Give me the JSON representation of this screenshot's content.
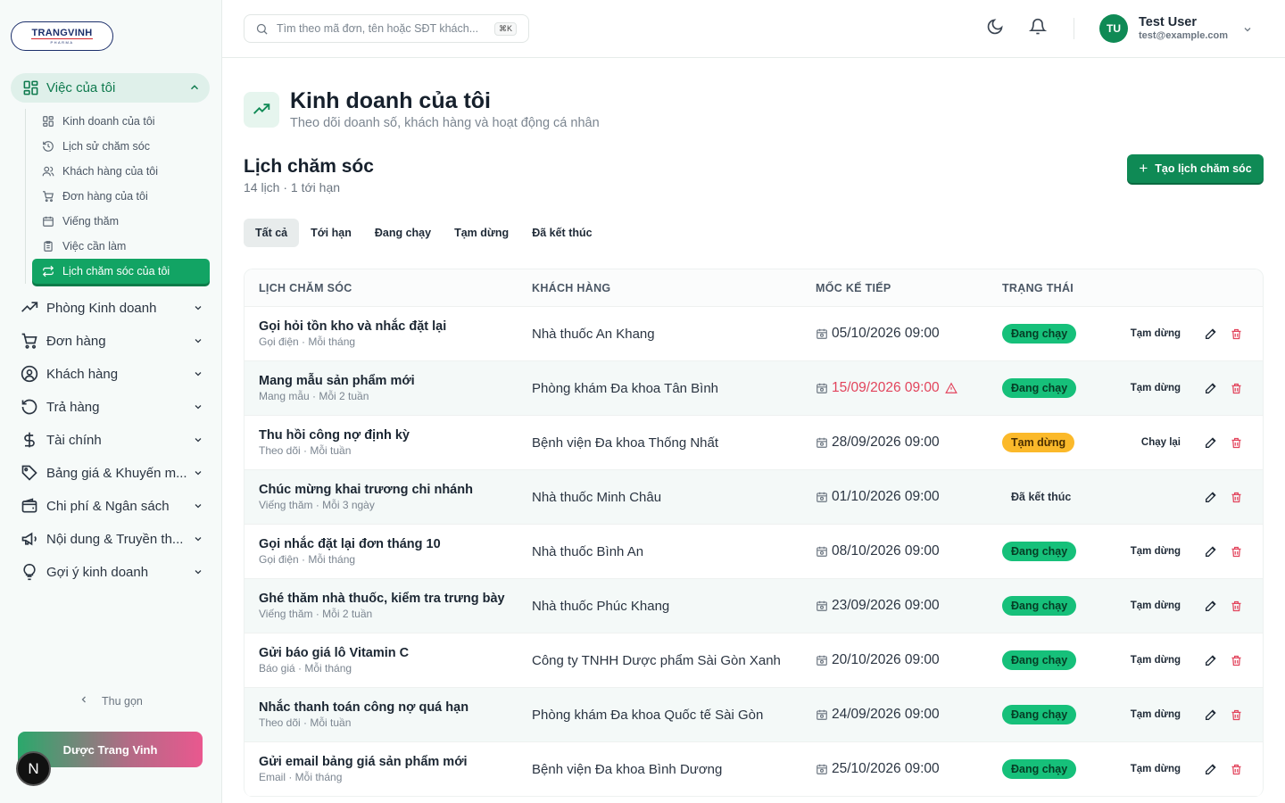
{
  "brand": {
    "logo_main": "TRANGVINH",
    "logo_sub": "PHARMA"
  },
  "sidebar": {
    "open_group": {
      "label": "Việc của tôi",
      "icon": "dashboard-icon"
    },
    "sub_items": [
      {
        "label": "Kinh doanh của tôi",
        "icon": "dashboard-icon"
      },
      {
        "label": "Lịch sử chăm sóc",
        "icon": "history-icon"
      },
      {
        "label": "Khách hàng của tôi",
        "icon": "users-icon"
      },
      {
        "label": "Đơn hàng của tôi",
        "icon": "cart-icon"
      },
      {
        "label": "Viếng thăm",
        "icon": "calendar-icon"
      },
      {
        "label": "Việc cần làm",
        "icon": "clipboard-icon"
      },
      {
        "label": "Lịch chăm sóc của tôi",
        "icon": "repeat-icon"
      }
    ],
    "groups": [
      {
        "label": "Phòng Kinh doanh",
        "icon": "trending-icon"
      },
      {
        "label": "Đơn hàng",
        "icon": "cart-icon"
      },
      {
        "label": "Khách hàng",
        "icon": "user-circle-icon"
      },
      {
        "label": "Trả hàng",
        "icon": "undo-icon"
      },
      {
        "label": "Tài chính",
        "icon": "dollar-icon"
      },
      {
        "label": "Bảng giá & Khuyến m...",
        "icon": "tag-icon"
      },
      {
        "label": "Chi phí & Ngân sách",
        "icon": "wallet-icon"
      },
      {
        "label": "Nội dung & Truyền th...",
        "icon": "megaphone-icon"
      },
      {
        "label": "Gợi ý kinh doanh",
        "icon": "lightbulb-icon"
      }
    ],
    "collapse_label": "Thu gọn",
    "brand_button": "Dược Trang Vinh",
    "n_badge": "N"
  },
  "topbar": {
    "search_placeholder": "Tìm theo mã đơn, tên hoặc SĐT khách...",
    "shortcut": "⌘K",
    "user_initials": "TU",
    "user_name": "Test User",
    "user_email": "test@example.com"
  },
  "page": {
    "title": "Kinh doanh của tôi",
    "subtitle": "Theo dõi doanh số, khách hàng và hoạt động cá nhân",
    "section_title": "Lịch chăm sóc",
    "section_sub": "14 lịch · 1 tới hạn",
    "create_button": "Tạo lịch chăm sóc",
    "tabs": [
      "Tất cả",
      "Tới hạn",
      "Đang chạy",
      "Tạm dừng",
      "Đã kết thúc"
    ]
  },
  "table": {
    "headers": [
      "LỊCH CHĂM SÓC",
      "KHÁCH HÀNG",
      "MỐC KẾ TIẾP",
      "TRẠNG THÁI"
    ],
    "rows": [
      {
        "name": "Gọi hỏi tồn kho và nhắc đặt lại",
        "meta": "Gọi điện · Mỗi tháng",
        "customer": "Nhà thuốc An Khang",
        "next": "05/10/2026 09:00",
        "status": "Đang chạy",
        "action": "Tạm dừng"
      },
      {
        "name": "Mang mẫu sản phẩm mới",
        "meta": "Mang mẫu · Mỗi 2 tuần",
        "customer": "Phòng khám Đa khoa Tân Bình",
        "next": "15/09/2026 09:00",
        "status": "Đang chạy",
        "action": "Tạm dừng"
      },
      {
        "name": "Thu hồi công nợ định kỳ",
        "meta": "Theo dõi · Mỗi tuần",
        "customer": "Bệnh viện Đa khoa Thống Nhất",
        "next": "28/09/2026 09:00",
        "status": "Tạm dừng",
        "action": "Chạy lại"
      },
      {
        "name": "Chúc mừng khai trương chi nhánh",
        "meta": "Viếng thăm · Mỗi 3 ngày",
        "customer": "Nhà thuốc Minh Châu",
        "next": "01/10/2026 09:00",
        "status": "Đã kết thúc",
        "action": ""
      },
      {
        "name": "Gọi nhắc đặt lại đơn tháng 10",
        "meta": "Gọi điện · Mỗi tháng",
        "customer": "Nhà thuốc Bình An",
        "next": "08/10/2026 09:00",
        "status": "Đang chạy",
        "action": "Tạm dừng"
      },
      {
        "name": "Ghé thăm nhà thuốc, kiểm tra trưng bày",
        "meta": "Viếng thăm · Mỗi 2 tuần",
        "customer": "Nhà thuốc Phúc Khang",
        "next": "23/09/2026 09:00",
        "status": "Đang chạy",
        "action": "Tạm dừng"
      },
      {
        "name": "Gửi báo giá lô Vitamin C",
        "meta": "Báo giá · Mỗi tháng",
        "customer": "Công ty TNHH Dược phẩm Sài Gòn Xanh",
        "next": "20/10/2026 09:00",
        "status": "Đang chạy",
        "action": "Tạm dừng"
      },
      {
        "name": "Nhắc thanh toán công nợ quá hạn",
        "meta": "Theo dõi · Mỗi tuần",
        "customer": "Phòng khám Đa khoa Quốc tế Sài Gòn",
        "next": "24/09/2026 09:00",
        "status": "Đang chạy",
        "action": "Tạm dừng"
      },
      {
        "name": "Gửi email bảng giá sản phẩm mới",
        "meta": "Email · Mỗi tháng",
        "customer": "Bệnh viện Đa khoa Bình Dương",
        "next": "25/10/2026 09:00",
        "status": "Đang chạy",
        "action": "Tạm dừng"
      }
    ]
  }
}
